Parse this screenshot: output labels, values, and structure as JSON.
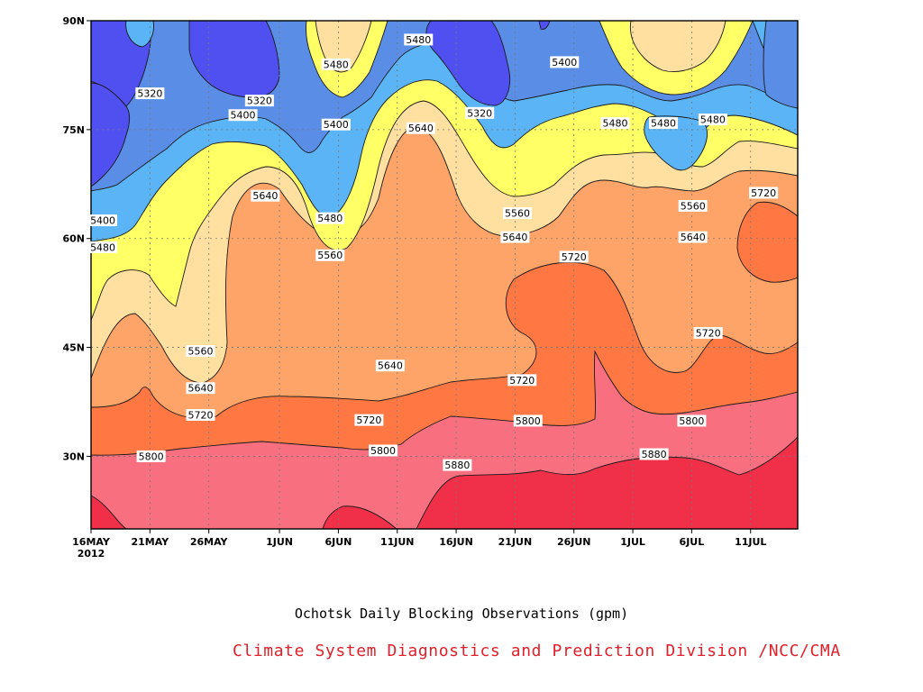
{
  "chart_data": {
    "type": "heatmap",
    "subtype": "filled-contour",
    "title": "Ochotsk Daily Blocking Observations (gpm)",
    "credit": "Climate System Diagnostics and Prediction Division /NCC/CMA",
    "x_ticks": [
      {
        "day": 0,
        "label": "16MAY",
        "sublabel": "2012"
      },
      {
        "day": 5,
        "label": "21MAY"
      },
      {
        "day": 10,
        "label": "26MAY"
      },
      {
        "day": 16,
        "label": "1JUN"
      },
      {
        "day": 21,
        "label": "6JUN"
      },
      {
        "day": 26,
        "label": "11JUN"
      },
      {
        "day": 31,
        "label": "16JUN"
      },
      {
        "day": 36,
        "label": "21JUN"
      },
      {
        "day": 41,
        "label": "26JUN"
      },
      {
        "day": 46,
        "label": "1JUL"
      },
      {
        "day": 51,
        "label": "6JUL"
      },
      {
        "day": 56,
        "label": "11JUL"
      }
    ],
    "x_range_days": [
      0,
      60
    ],
    "y_ticks": [
      {
        "lat": 30,
        "label": "30N"
      },
      {
        "lat": 45,
        "label": "45N"
      },
      {
        "lat": 60,
        "label": "60N"
      },
      {
        "lat": 75,
        "label": "75N"
      },
      {
        "lat": 90,
        "label": "90N"
      }
    ],
    "y_range_lat": [
      20,
      90
    ],
    "grid": true,
    "levels": [
      5320,
      5400,
      5480,
      5560,
      5640,
      5720,
      5800,
      5880
    ],
    "fill_colors": [
      "#5050f0",
      "#5a8ee6",
      "#5ab4f5",
      "#ffff66",
      "#ffe0a0",
      "#ffa468",
      "#ff7844",
      "#f87080",
      "#f03048"
    ],
    "contour_labels": [
      {
        "day": 5,
        "lat": 80.0,
        "text": "5320"
      },
      {
        "day": 14.3,
        "lat": 79.0,
        "text": "5320"
      },
      {
        "day": 12.9,
        "lat": 77.0,
        "text": "5400"
      },
      {
        "day": 20.8,
        "lat": 84.0,
        "text": "5480"
      },
      {
        "day": 20.8,
        "lat": 75.7,
        "text": "5400"
      },
      {
        "day": 27.8,
        "lat": 87.4,
        "text": "5480"
      },
      {
        "day": 33.0,
        "lat": 77.3,
        "text": "5320"
      },
      {
        "day": 40.2,
        "lat": 84.3,
        "text": "5400"
      },
      {
        "day": 44.5,
        "lat": 75.9,
        "text": "5480"
      },
      {
        "day": 48.6,
        "lat": 75.9,
        "text": "5480"
      },
      {
        "day": 52.8,
        "lat": 76.4,
        "text": "5480"
      },
      {
        "day": 28.0,
        "lat": 75.2,
        "text": "5640"
      },
      {
        "day": 1.0,
        "lat": 62.5,
        "text": "5400"
      },
      {
        "day": 1.0,
        "lat": 58.8,
        "text": "5480"
      },
      {
        "day": 14.8,
        "lat": 65.9,
        "text": "5640"
      },
      {
        "day": 20.3,
        "lat": 62.8,
        "text": "5480"
      },
      {
        "day": 20.3,
        "lat": 57.7,
        "text": "5560"
      },
      {
        "day": 36.2,
        "lat": 63.5,
        "text": "5560"
      },
      {
        "day": 36.0,
        "lat": 60.2,
        "text": "5640"
      },
      {
        "day": 41.0,
        "lat": 57.5,
        "text": "5720"
      },
      {
        "day": 51.1,
        "lat": 64.5,
        "text": "5560"
      },
      {
        "day": 51.1,
        "lat": 60.2,
        "text": "5640"
      },
      {
        "day": 57.1,
        "lat": 66.3,
        "text": "5720"
      },
      {
        "day": 9.3,
        "lat": 44.5,
        "text": "5560"
      },
      {
        "day": 9.3,
        "lat": 39.4,
        "text": "5640"
      },
      {
        "day": 9.3,
        "lat": 35.7,
        "text": "5720"
      },
      {
        "day": 25.4,
        "lat": 42.5,
        "text": "5640"
      },
      {
        "day": 23.6,
        "lat": 35.0,
        "text": "5720"
      },
      {
        "day": 36.6,
        "lat": 40.5,
        "text": "5720"
      },
      {
        "day": 52.4,
        "lat": 47.0,
        "text": "5720"
      },
      {
        "day": 5.1,
        "lat": 30.0,
        "text": "5800"
      },
      {
        "day": 24.8,
        "lat": 30.8,
        "text": "5800"
      },
      {
        "day": 37.1,
        "lat": 34.9,
        "text": "5800"
      },
      {
        "day": 51.0,
        "lat": 34.9,
        "text": "5800"
      },
      {
        "day": 31.1,
        "lat": 28.8,
        "text": "5880"
      },
      {
        "day": 47.8,
        "lat": 30.3,
        "text": "5880"
      }
    ]
  }
}
